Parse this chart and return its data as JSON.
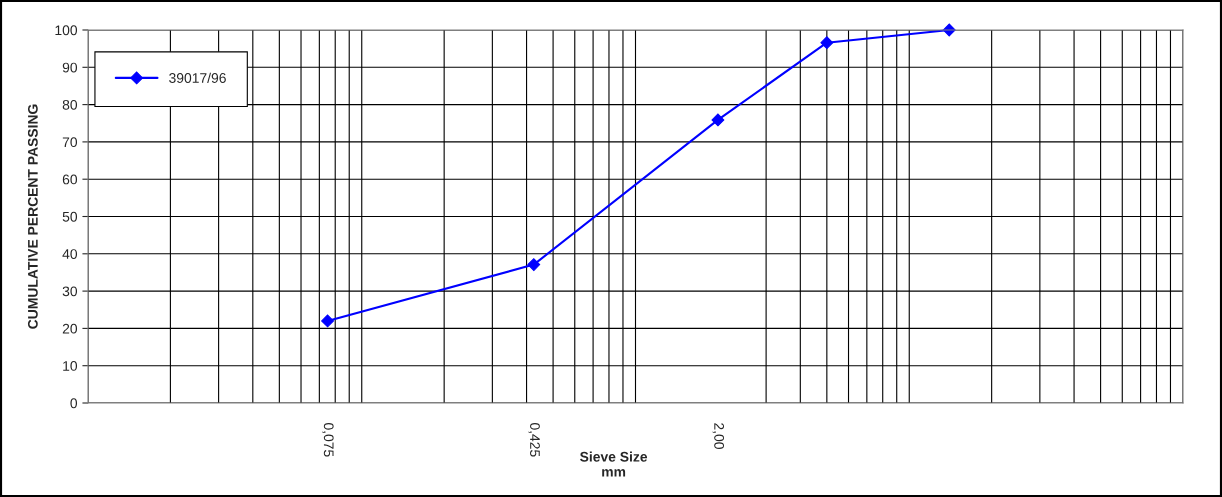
{
  "chart_data": {
    "type": "line",
    "xlabel": "Sieve Size\nmm",
    "ylabel": "CUMULATIVE PERCENT PASSING",
    "x": [
      0.075,
      0.425,
      2.0,
      5.0,
      14.0
    ],
    "series": [
      {
        "name": "39017/96",
        "color": "#0000ff",
        "values": [
          22,
          37.1,
          75.9,
          96.6,
          100
        ]
      }
    ],
    "log": "x",
    "xlim": [
      0.01,
      100
    ],
    "xticks": [
      {
        "value": 0.075,
        "label": "0,075"
      },
      {
        "value": 0.425,
        "label": "0,425"
      },
      {
        "value": 2.0,
        "label": "2,00"
      }
    ],
    "ylim": [
      0,
      100
    ],
    "yticks": [
      0,
      10,
      20,
      30,
      40,
      50,
      60,
      70,
      80,
      90,
      100
    ],
    "grid": true,
    "legend": "top left",
    "marker": "diamond",
    "line_style": "solid"
  }
}
